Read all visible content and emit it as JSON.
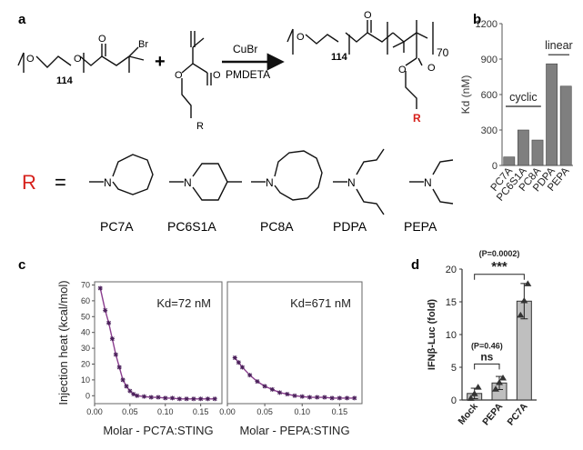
{
  "panels": {
    "a": {
      "letter": "a",
      "peg_repeat": "114",
      "reagent": "CuBr",
      "ligand": "PMDETA",
      "polymer_repeat": "70",
      "r_symbol": "R",
      "equals": "=",
      "bromine": "Br",
      "plus": "+",
      "o": "O",
      "n": "N",
      "structures": [
        "PC7A",
        "PC6S1A",
        "PC8A",
        "PDPA",
        "PEPA"
      ]
    },
    "b": {
      "letter": "b"
    },
    "c": {
      "letter": "c"
    },
    "d": {
      "letter": "d"
    }
  },
  "chart_data": [
    {
      "id": "b",
      "type": "bar",
      "categories": [
        "PC7A",
        "PC6S1A",
        "PC8A",
        "PDPA",
        "PEPA"
      ],
      "values": [
        72,
        300,
        215,
        860,
        671
      ],
      "ylabel": "Kd (nM)",
      "ylim": [
        0,
        1200
      ],
      "yticks": [
        0,
        300,
        600,
        900,
        1200
      ],
      "group_labels": [
        {
          "text": "cyclic",
          "from": 0,
          "to": 2
        },
        {
          "text": "linear",
          "from": 3,
          "to": 4
        }
      ],
      "bar_color": "#7f7f7f"
    },
    {
      "id": "c-left",
      "type": "scatter",
      "annotation": "Kd=72 nM",
      "ylabel": "Injection heat (kcal/mol)",
      "xlabel": "Molar - PC7A:STING",
      "xlim": [
        0,
        0.18
      ],
      "ylim": [
        -5,
        72
      ],
      "xticks": [
        0.0,
        0.05,
        0.1,
        0.15
      ],
      "xtick_labels": [
        "0.00",
        "0.05",
        "0.10",
        "0.15"
      ],
      "yticks": [
        0,
        10,
        20,
        30,
        40,
        50,
        60,
        70
      ],
      "points": [
        [
          0.008,
          68
        ],
        [
          0.015,
          54
        ],
        [
          0.02,
          46
        ],
        [
          0.025,
          36
        ],
        [
          0.03,
          26
        ],
        [
          0.035,
          18
        ],
        [
          0.04,
          10
        ],
        [
          0.045,
          6
        ],
        [
          0.05,
          3
        ],
        [
          0.055,
          1
        ],
        [
          0.06,
          0
        ],
        [
          0.07,
          -0.5
        ],
        [
          0.08,
          -1
        ],
        [
          0.09,
          -1
        ],
        [
          0.1,
          -1.5
        ],
        [
          0.11,
          -1.5
        ],
        [
          0.12,
          -2
        ],
        [
          0.13,
          -2
        ],
        [
          0.14,
          -2
        ],
        [
          0.15,
          -2
        ],
        [
          0.16,
          -2
        ],
        [
          0.17,
          -2
        ]
      ],
      "color": "#8a3d8e"
    },
    {
      "id": "c-right",
      "type": "scatter",
      "annotation": "Kd=671 nM",
      "xlabel": "Molar - PEPA:STING",
      "xlim": [
        0,
        0.18
      ],
      "ylim": [
        -5,
        72
      ],
      "xticks": [
        0.0,
        0.05,
        0.1,
        0.15
      ],
      "xtick_labels": [
        "0.00",
        "0.05",
        "0.10",
        "0.15"
      ],
      "points": [
        [
          0.01,
          24
        ],
        [
          0.015,
          21
        ],
        [
          0.02,
          18
        ],
        [
          0.03,
          13
        ],
        [
          0.04,
          9
        ],
        [
          0.05,
          6
        ],
        [
          0.06,
          4
        ],
        [
          0.07,
          2
        ],
        [
          0.08,
          1
        ],
        [
          0.09,
          0
        ],
        [
          0.1,
          -0.5
        ],
        [
          0.11,
          -1
        ],
        [
          0.12,
          -1
        ],
        [
          0.13,
          -1
        ],
        [
          0.14,
          -1.5
        ],
        [
          0.15,
          -1.5
        ],
        [
          0.16,
          -1.5
        ],
        [
          0.17,
          -1.5
        ]
      ],
      "color": "#8a3d8e"
    },
    {
      "id": "d",
      "type": "bar",
      "categories": [
        "Mock",
        "PEPA",
        "PC7A"
      ],
      "values": [
        1.0,
        2.6,
        15.1
      ],
      "errors": [
        0.8,
        1.0,
        2.7
      ],
      "points": [
        [
          0.3,
          1.0,
          2.0
        ],
        [
          1.7,
          2.7,
          3.4
        ],
        [
          13.0,
          15.2,
          17.8
        ]
      ],
      "ylabel": "IFNβ-Luc (fold)",
      "ylim": [
        0,
        20
      ],
      "yticks": [
        0,
        5,
        10,
        15,
        20
      ],
      "bar_color": "#bfbfbf",
      "significance": [
        {
          "from": 0,
          "to": 1,
          "label": "ns",
          "p": "(P=0.46)"
        },
        {
          "from": 0,
          "to": 2,
          "label": "***",
          "p": "(P=0.0002)"
        }
      ]
    }
  ]
}
